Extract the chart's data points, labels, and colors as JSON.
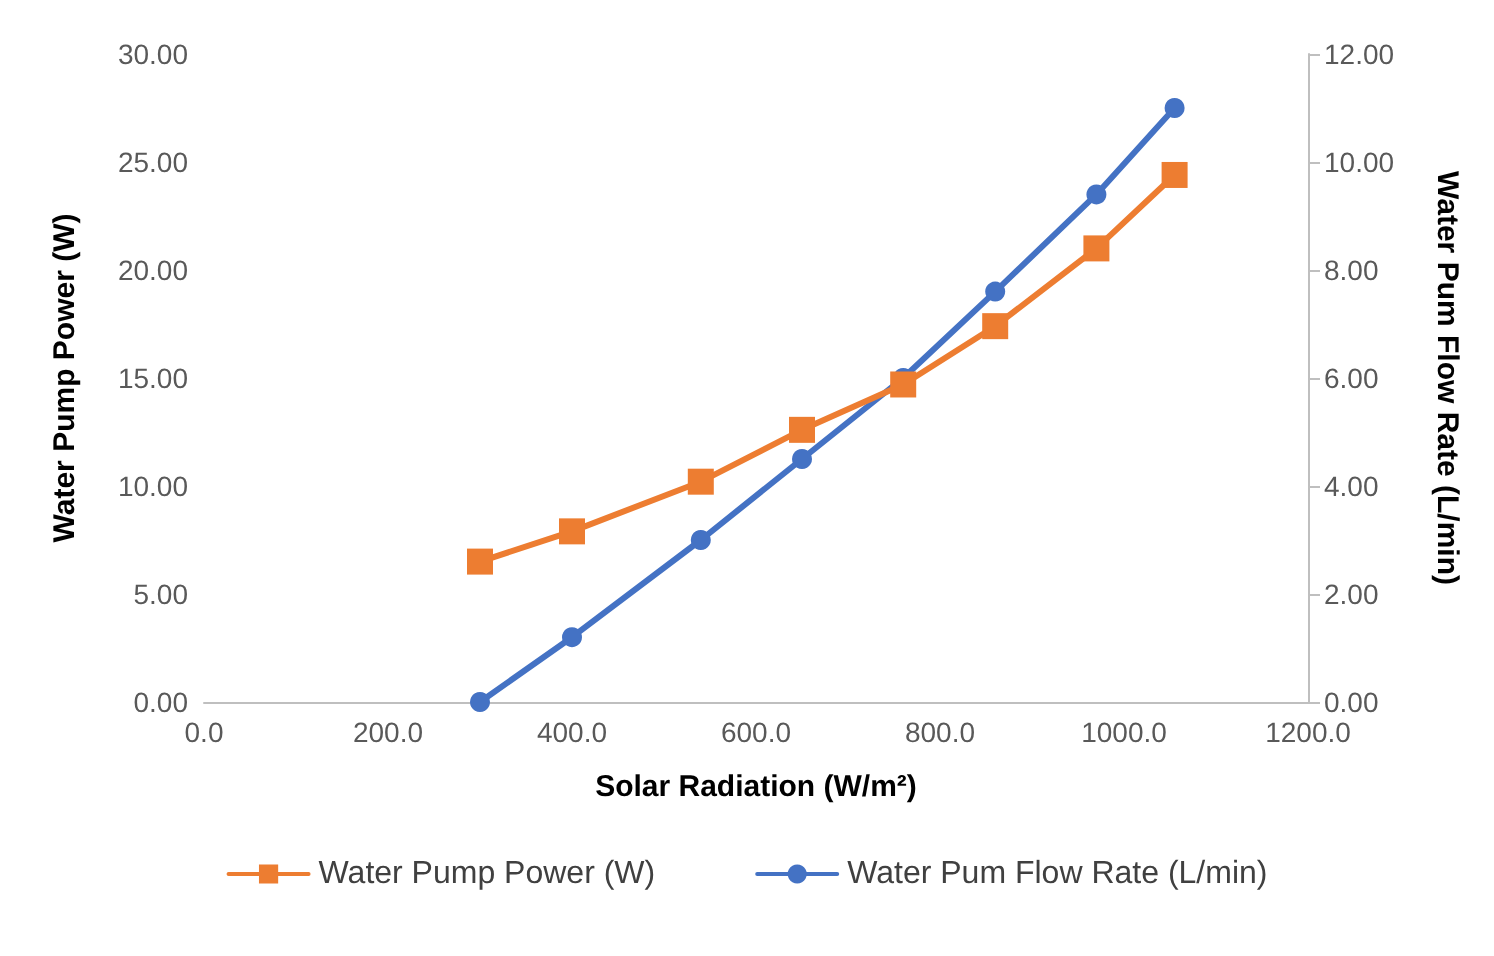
{
  "chart_data": {
    "type": "line",
    "xlabel": "Solar Radiation (W/m²)",
    "ylabel": "Water Pump Power (W)",
    "y2label": "Water Pum Flow Rate (L/min)",
    "x": [
      300,
      400,
      540,
      650,
      760,
      860,
      970,
      1055
    ],
    "series": [
      {
        "name": "Water Pump Power (W)",
        "color": "#ed7d31",
        "marker": "square",
        "values": [
          6.5,
          7.9,
          10.2,
          12.6,
          14.7,
          17.4,
          21.0,
          24.4
        ]
      },
      {
        "name": "Water Pum Flow Rate (L/min)",
        "color": "#4472c4",
        "marker": "circle",
        "axis": "y2",
        "values": [
          0,
          1.2,
          3.0,
          4.5,
          6.0,
          7.6,
          9.4,
          11.0
        ]
      }
    ],
    "xlim": [
      0,
      1200
    ],
    "xticks": [
      {
        "value": 0,
        "label": "0.0"
      },
      {
        "value": 200,
        "label": "200.0"
      },
      {
        "value": 400,
        "label": "400.0"
      },
      {
        "value": 600,
        "label": "600.0"
      },
      {
        "value": 800,
        "label": "800.0"
      },
      {
        "value": 1000,
        "label": "1000.0"
      },
      {
        "value": 1200,
        "label": "1200.0"
      }
    ],
    "ylim": [
      0,
      30
    ],
    "yticks": [
      {
        "value": 0,
        "label": "0.00"
      },
      {
        "value": 5,
        "label": "5.00"
      },
      {
        "value": 10,
        "label": "10.00"
      },
      {
        "value": 15,
        "label": "15.00"
      },
      {
        "value": 20,
        "label": "20.00"
      },
      {
        "value": 25,
        "label": "25.00"
      },
      {
        "value": 30,
        "label": "30.00"
      }
    ],
    "y2lim": [
      0,
      12
    ],
    "y2ticks": [
      {
        "value": 0,
        "label": "0.00"
      },
      {
        "value": 2,
        "label": "2.00"
      },
      {
        "value": 4,
        "label": "4.00"
      },
      {
        "value": 6,
        "label": "6.00"
      },
      {
        "value": 8,
        "label": "8.00"
      },
      {
        "value": 10,
        "label": "10.00"
      },
      {
        "value": 12,
        "label": "12.00"
      }
    ],
    "legend": "bottom",
    "grid": false,
    "line_style": "solid"
  }
}
